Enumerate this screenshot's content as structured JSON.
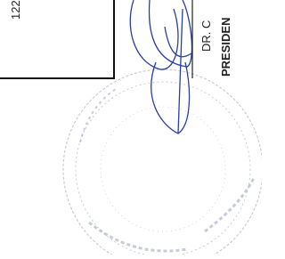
{
  "document": {
    "number": "122",
    "signatory_name": "DR. C",
    "signatory_title": "PRESIDEN"
  }
}
